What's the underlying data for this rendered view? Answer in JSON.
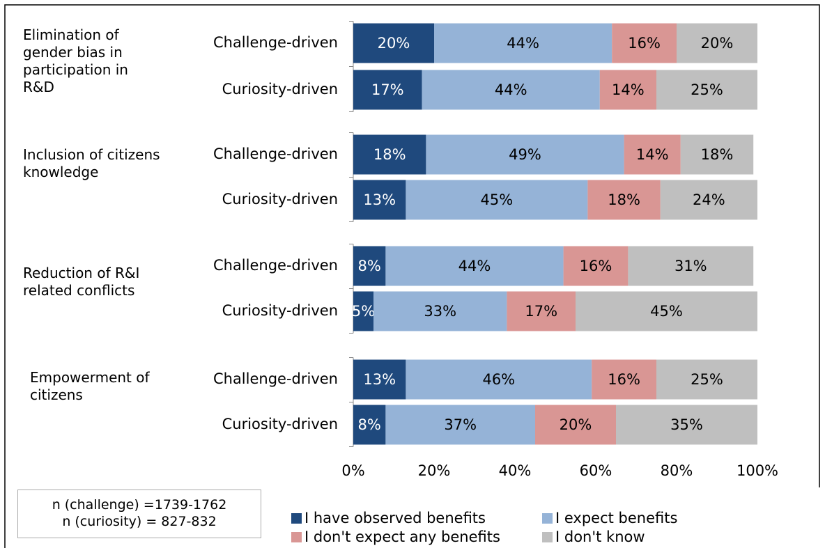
{
  "chart_data": {
    "type": "stacked-barh",
    "groups": [
      "Elimination of gender bias in participation in R&D",
      "Inclusion of citizens knowledge",
      "Reduction of R&I related conflicts",
      "Empowerment of citizens"
    ],
    "categories": [
      "Challenge-driven",
      "Curiosity-driven",
      "Challenge-driven",
      "Curiosity-driven",
      "Challenge-driven",
      "Curiosity-driven",
      "Challenge-driven",
      "Curiosity-driven"
    ],
    "series": [
      {
        "name": "I have observed benefits",
        "color": "#1f497d",
        "values": [
          20,
          17,
          18,
          13,
          8,
          5,
          13,
          8
        ],
        "value_labels": [
          "20%",
          "17%",
          "18%",
          "13%",
          "8%",
          "5%",
          "13%",
          "8%"
        ]
      },
      {
        "name": "I expect benefits",
        "color": "#95b3d7",
        "values": [
          44,
          44,
          49,
          45,
          44,
          33,
          46,
          37
        ],
        "value_labels": [
          "44%",
          "44%",
          "49%",
          "45%",
          "44%",
          "33%",
          "46%",
          "37%"
        ]
      },
      {
        "name": "I don't expect any benefits",
        "color": "#d99694",
        "values": [
          16,
          14,
          14,
          18,
          16,
          17,
          16,
          20
        ],
        "value_labels": [
          "16%",
          "14%",
          "14%",
          "18%",
          "16%",
          "17%",
          "16%",
          "20%"
        ]
      },
      {
        "name": "I don't know",
        "color": "#bfbfbf",
        "values": [
          20,
          25,
          18,
          24,
          31,
          45,
          25,
          35
        ],
        "value_labels": [
          "20%",
          "25%",
          "18%",
          "24%",
          "31%",
          "45%",
          "25%",
          "35%"
        ]
      }
    ],
    "xlim": [
      0,
      100
    ],
    "xticks": [
      {
        "value": 0,
        "label": "0%"
      },
      {
        "value": 20,
        "label": "20%"
      },
      {
        "value": 40,
        "label": "40%"
      },
      {
        "value": 60,
        "label": "60%"
      },
      {
        "value": 80,
        "label": "80%"
      },
      {
        "value": 100,
        "label": "100%"
      }
    ],
    "notes": [
      "n (challenge) =1739-1762",
      "n (curiosity) = 827-832"
    ]
  }
}
